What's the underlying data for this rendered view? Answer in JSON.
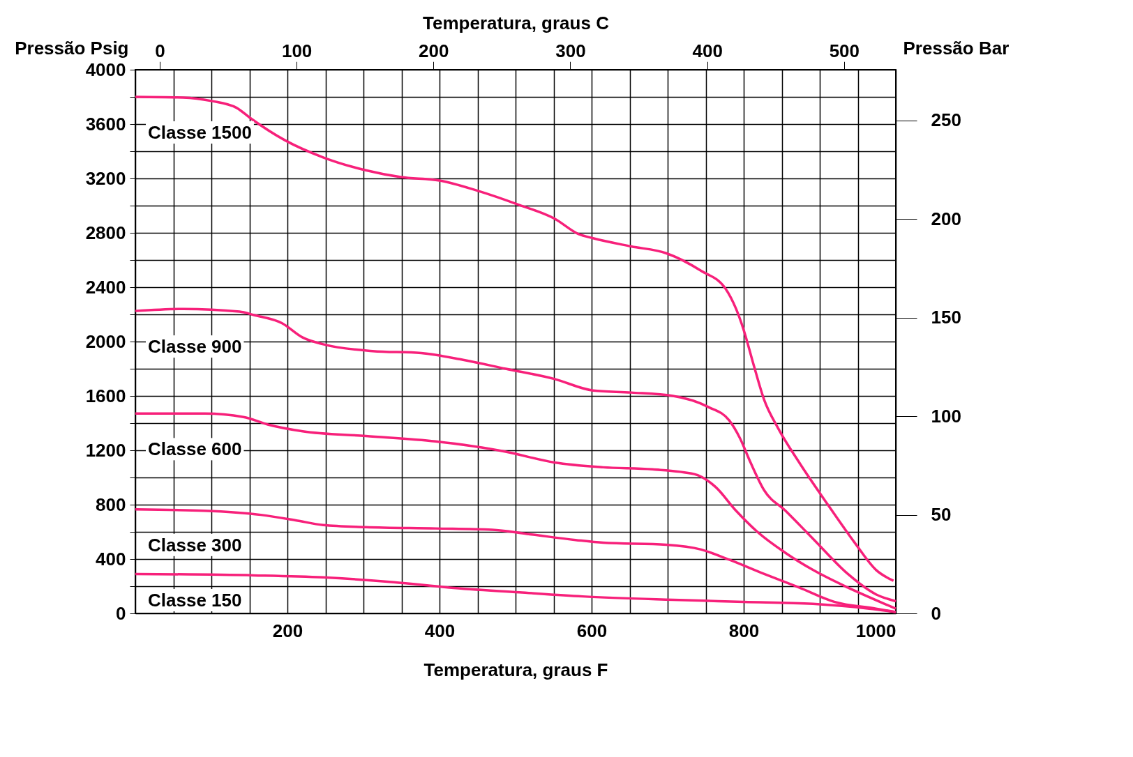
{
  "chart_data": {
    "type": "line",
    "xlabel": "Temperatura, graus F",
    "ylabel": "Pressão Psig",
    "y2label": "Pressão Bar",
    "x2label": "Temperatura, graus C",
    "xlim": [
      0,
      1000
    ],
    "xticks": [
      {
        "value": 0,
        "label": null
      },
      {
        "value": 50,
        "label": null
      },
      {
        "value": 100,
        "label": null
      },
      {
        "value": 150,
        "label": null
      },
      200,
      {
        "value": 250,
        "label": null
      },
      {
        "value": 300,
        "label": null
      },
      {
        "value": 350,
        "label": null
      },
      400,
      {
        "value": 450,
        "label": null
      },
      {
        "value": 500,
        "label": null
      },
      {
        "value": 550,
        "label": null
      },
      600,
      {
        "value": 650,
        "label": null
      },
      {
        "value": 700,
        "label": null
      },
      {
        "value": 750,
        "label": null
      },
      800,
      {
        "value": 850,
        "label": null
      },
      {
        "value": 900,
        "label": null
      },
      {
        "value": 950,
        "label": null
      },
      1000
    ],
    "ylim": [
      0,
      4000
    ],
    "yticks": [
      0,
      {
        "value": 200,
        "label": null
      },
      400,
      {
        "value": 600,
        "label": null
      },
      800,
      {
        "value": 1000,
        "label": null
      },
      1200,
      {
        "value": 1400,
        "label": null
      },
      1600,
      {
        "value": 1800,
        "label": null
      },
      2000,
      {
        "value": 2200,
        "label": null
      },
      2400,
      {
        "value": 2600,
        "label": null
      },
      2800,
      {
        "value": 3000,
        "label": null
      },
      3200,
      {
        "value": 3400,
        "label": null
      },
      3600,
      {
        "value": 3800,
        "label": null
      },
      4000
    ],
    "y2lim": [
      0,
      275.8
    ],
    "y2ticks": [
      0,
      50,
      100,
      150,
      200,
      250
    ],
    "x2lim": [
      -17.8,
      537.8
    ],
    "x2ticks": [
      0,
      100,
      200,
      300,
      400,
      500
    ],
    "grid": true,
    "line_style": "solid",
    "series": [
      {
        "name": "Classe 1500",
        "color": "#f7207a",
        "x": [
          0,
          63,
          100,
          133,
          151,
          197,
          247,
          303,
          349,
          400,
          450,
          505,
          551,
          583,
          602,
          652,
          698,
          744,
          776,
          790,
          800,
          813,
          827,
          845,
          873,
          910,
          946,
          974,
          997
        ],
        "values": [
          3800,
          3795,
          3770,
          3720,
          3645,
          3480,
          3355,
          3260,
          3210,
          3185,
          3110,
          3005,
          2905,
          2790,
          2760,
          2700,
          2650,
          2520,
          2390,
          2240,
          2085,
          1830,
          1570,
          1365,
          1110,
          805,
          520,
          320,
          240
        ]
      },
      {
        "name": "Classe 900",
        "color": "#f7207a",
        "x": [
          0,
          63,
          137,
          156,
          193,
          220,
          247,
          312,
          376,
          431,
          487,
          551,
          602,
          652,
          707,
          753,
          781,
          795,
          809,
          827,
          855,
          891,
          937,
          974,
          1000
        ],
        "values": [
          2225,
          2240,
          2220,
          2195,
          2135,
          2030,
          1980,
          1930,
          1915,
          1865,
          1800,
          1725,
          1640,
          1625,
          1600,
          1520,
          1420,
          1290,
          1110,
          905,
          755,
          550,
          290,
          140,
          90
        ]
      },
      {
        "name": "Classe 600",
        "color": "#f7207a",
        "x": [
          0,
          91,
          142,
          174,
          220,
          303,
          395,
          487,
          551,
          615,
          680,
          735,
          763,
          790,
          818,
          855,
          891,
          937,
          979,
          1000
        ],
        "values": [
          1470,
          1470,
          1445,
          1390,
          1340,
          1305,
          1265,
          1190,
          1110,
          1075,
          1060,
          1025,
          930,
          755,
          600,
          445,
          320,
          190,
          85,
          35
        ]
      },
      {
        "name": "Classe 300",
        "color": "#f7207a",
        "x": [
          0,
          91,
          165,
          211,
          247,
          303,
          395,
          469,
          515,
          579,
          615,
          698,
          744,
          781,
          827,
          873,
          919,
          974,
          1000
        ],
        "values": [
          765,
          755,
          725,
          685,
          650,
          635,
          625,
          615,
          585,
          540,
          520,
          505,
          470,
          395,
          290,
          190,
          85,
          35,
          10
        ]
      },
      {
        "name": "Classe 150",
        "color": "#f7207a",
        "x": [
          0,
          156,
          247,
          340,
          413,
          505,
          588,
          707,
          800,
          891,
          965,
          1000
        ],
        "values": [
          290,
          280,
          265,
          230,
          190,
          155,
          125,
          100,
          85,
          70,
          35,
          10
        ]
      }
    ]
  }
}
